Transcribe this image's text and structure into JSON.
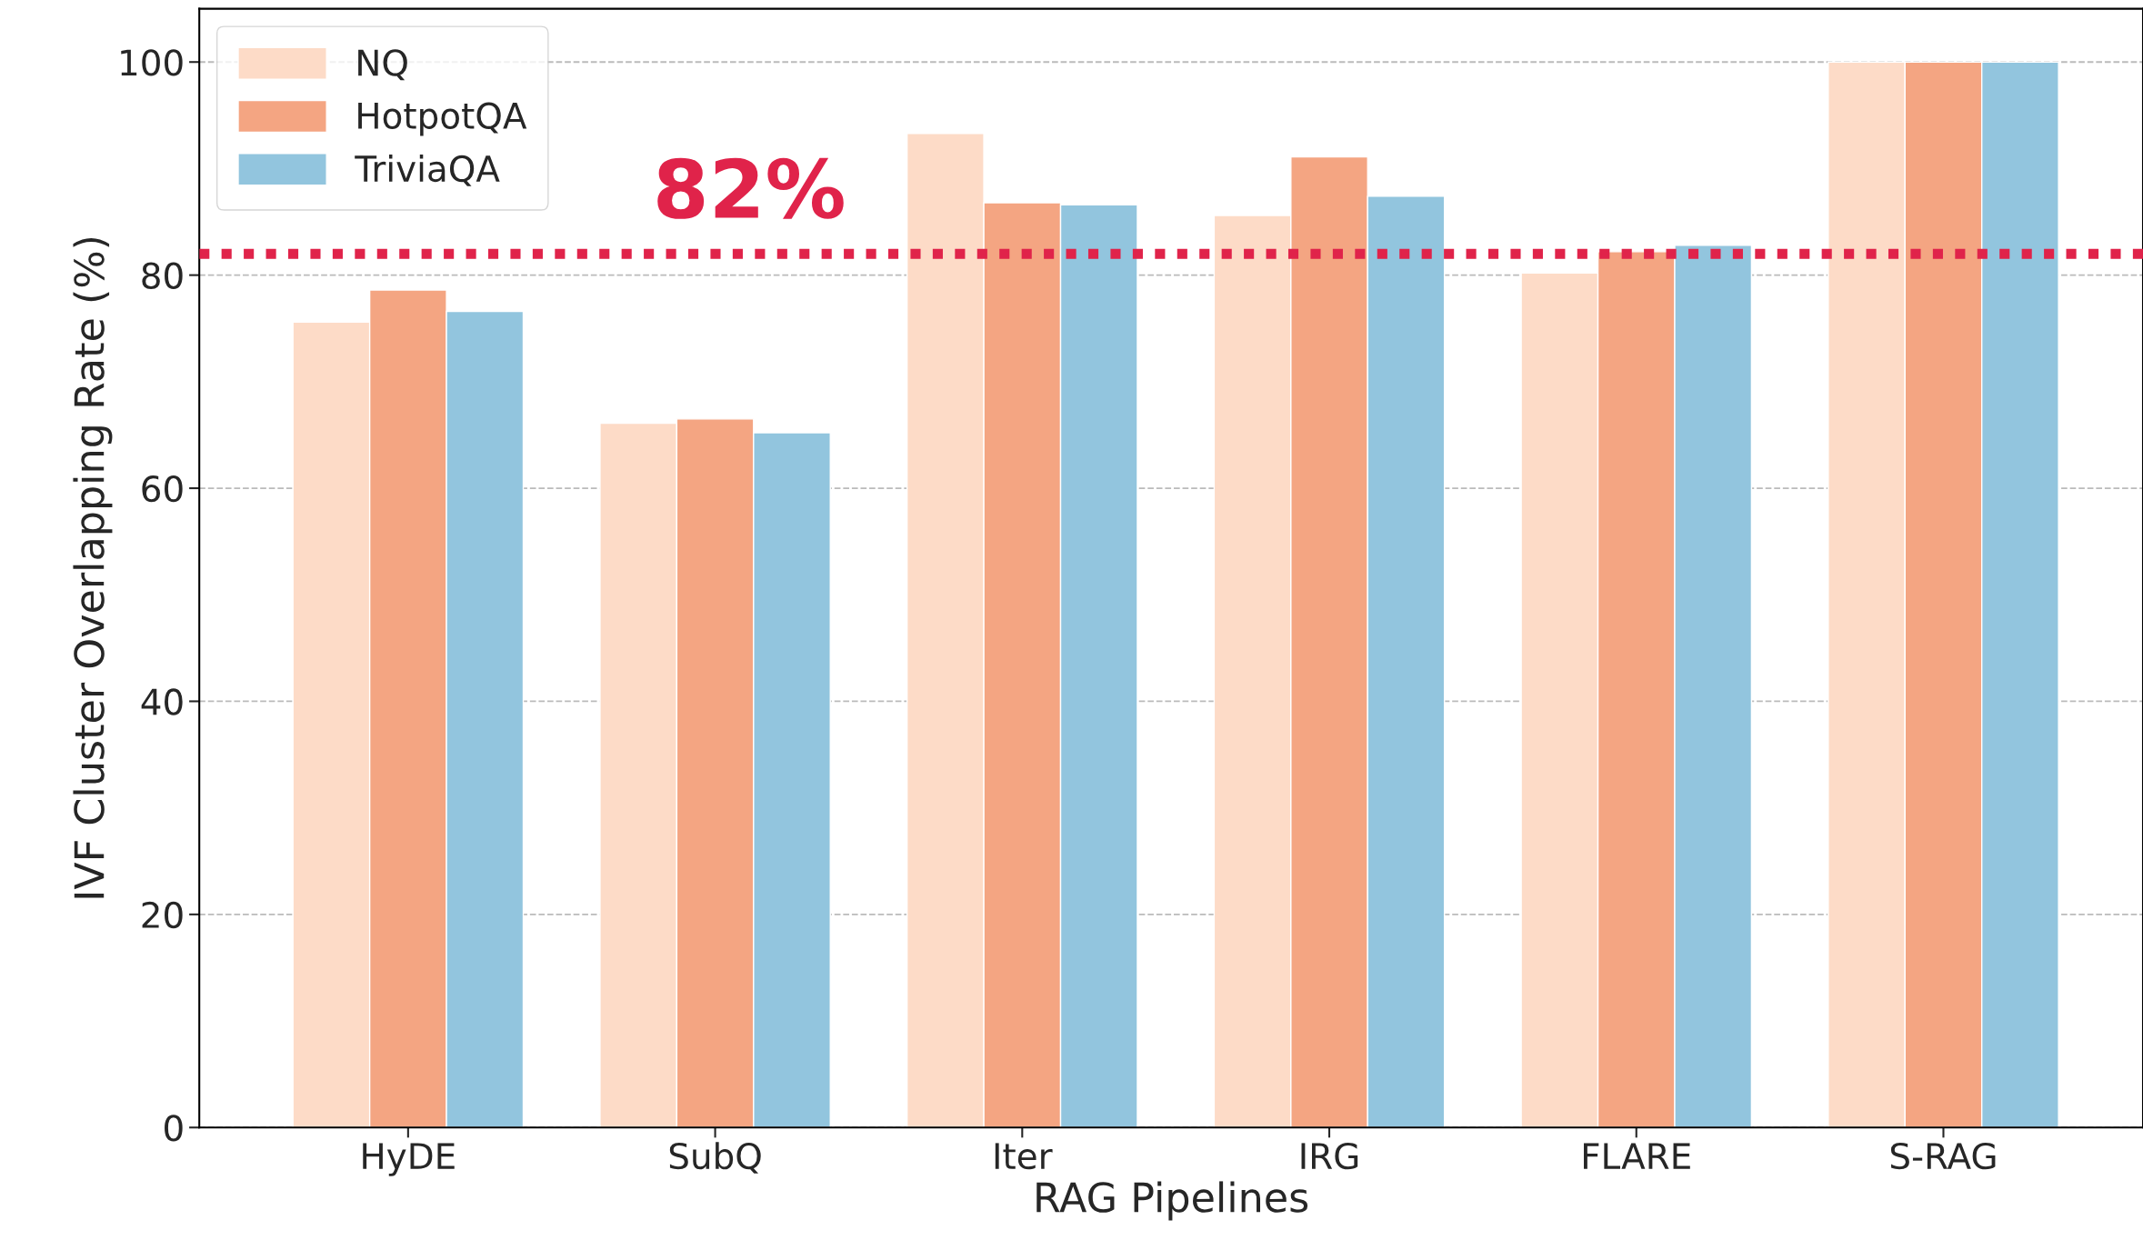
{
  "chart_data": {
    "type": "bar",
    "xlabel": "RAG Pipelines",
    "ylabel": "IVF Cluster Overlapping Rate (%)",
    "categories": [
      "HyDE",
      "SubQ",
      "Iter",
      "IRG",
      "FLARE",
      "S-RAG"
    ],
    "series": [
      {
        "name": "NQ",
        "color": "#fddbc7",
        "values": [
          75.6,
          66.1,
          93.3,
          85.6,
          80.2,
          100
        ]
      },
      {
        "name": "HotpotQA",
        "color": "#f4a582",
        "values": [
          78.6,
          66.5,
          86.8,
          91.1,
          82.2,
          100
        ]
      },
      {
        "name": "TriviaQA",
        "color": "#92c5de",
        "values": [
          76.6,
          65.2,
          86.6,
          87.4,
          82.8,
          100
        ]
      }
    ],
    "ylim": [
      0,
      105
    ],
    "yticks": [
      0,
      20,
      40,
      60,
      80,
      100
    ],
    "ref_lines": [
      {
        "axis": "y",
        "value": 82,
        "label": "82%",
        "color": "#e0234a",
        "line_style": "dotted"
      }
    ],
    "grid": "y",
    "legend": "top left"
  }
}
